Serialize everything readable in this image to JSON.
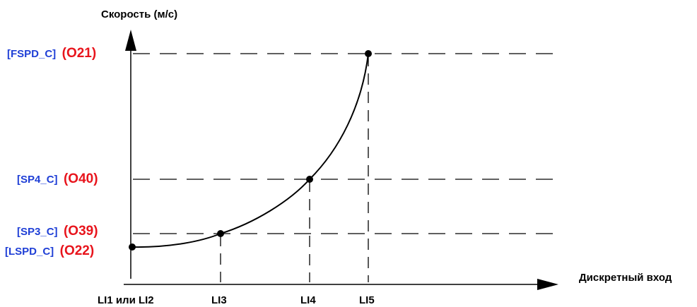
{
  "y_axis": {
    "title": "Скорость (м/с)"
  },
  "x_axis": {
    "title": "Дискретный вход"
  },
  "y_levels": [
    {
      "param": "[FSPD_C]",
      "code": "(O21)"
    },
    {
      "param": "[SP4_C]",
      "code": "(O40)"
    },
    {
      "param": "[SP3_C]",
      "code": "(O39)"
    },
    {
      "param": "[LSPD_C]",
      "code": "(O22)"
    }
  ],
  "x_ticks": [
    "LI1 или LI2",
    "LI3",
    "LI4",
    "LI5"
  ],
  "colors": {
    "param": "#1f3fd6",
    "code": "#e8141c",
    "line": "#000000"
  }
}
